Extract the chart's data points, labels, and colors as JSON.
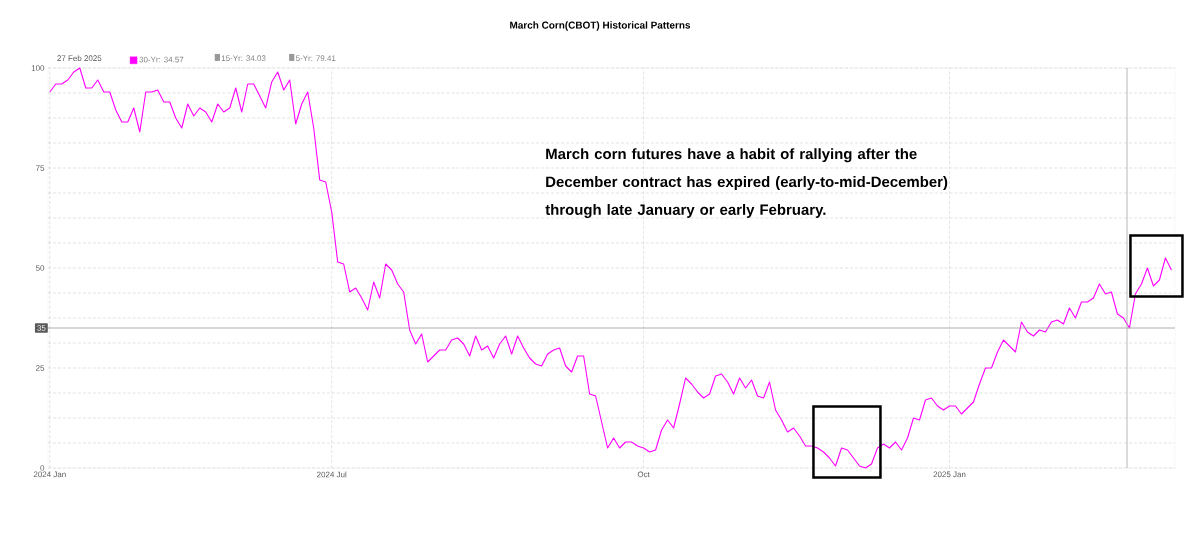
{
  "chart_data": {
    "type": "line",
    "title": "March Corn(CBOT) Historical Patterns",
    "categories": [
      "2024 Jan",
      null,
      null,
      null,
      null,
      null,
      null,
      null,
      null,
      null,
      null,
      null,
      null,
      null,
      null,
      null,
      null,
      null,
      null,
      null,
      null,
      null,
      null,
      null,
      null,
      null,
      null,
      null,
      null,
      null,
      null,
      null,
      null,
      null,
      null,
      null,
      null,
      null,
      null,
      null,
      null,
      null,
      null,
      null,
      null,
      null,
      null,
      "2024 Jul",
      null,
      null,
      null,
      null,
      null,
      null,
      null,
      null,
      null,
      null,
      null,
      null,
      null,
      null,
      null,
      null,
      null,
      null,
      null,
      null,
      null,
      null,
      null,
      null,
      null,
      null,
      null,
      null,
      null,
      null,
      null,
      null,
      null,
      null,
      null,
      null,
      null,
      null,
      null,
      null,
      null,
      null,
      null,
      null,
      null,
      null,
      null,
      null,
      null,
      null,
      null,
      "Oct",
      null,
      null,
      null,
      null,
      null,
      null,
      null,
      null,
      null,
      null,
      null,
      null,
      null,
      null,
      null,
      null,
      null,
      null,
      null,
      null,
      null,
      null,
      null,
      null,
      null,
      null,
      null,
      null,
      null,
      null,
      null,
      null,
      null,
      null,
      null,
      null,
      null,
      null,
      null,
      null,
      null,
      null,
      null,
      null,
      null,
      null,
      null,
      null,
      null,
      null,
      "2025 Jan",
      null,
      null,
      null,
      null,
      null,
      null,
      null,
      null,
      null,
      null,
      null,
      null,
      null,
      null,
      null,
      null,
      null,
      null,
      null,
      null,
      null,
      null,
      null,
      null,
      null,
      null,
      null,
      null,
      null,
      null,
      null,
      null,
      null,
      null,
      null,
      null,
      null
    ],
    "series": [
      {
        "name": "30-Yr: 34.57",
        "color": "#ff00ff",
        "values": [
          94,
          96,
          96,
          97,
          99,
          100,
          95,
          95,
          97,
          94,
          94,
          89.5,
          86.5,
          86.5,
          90,
          84,
          94,
          94,
          94.5,
          91.5,
          91.5,
          87.5,
          85,
          91,
          88,
          90,
          89,
          86.5,
          91,
          89,
          90,
          95,
          89,
          96,
          96,
          93,
          90,
          96.5,
          99,
          94.5,
          97,
          86,
          91,
          94,
          85,
          72,
          71.5,
          64,
          51.5,
          51,
          44,
          45,
          42.5,
          39.5,
          46.5,
          42.5,
          51,
          49.5,
          46,
          44,
          34.5,
          31,
          33.5,
          26.5,
          28,
          29.5,
          29.5,
          32,
          32.5,
          31,
          28,
          33,
          29.5,
          30.5,
          27.5,
          31,
          33,
          28.5,
          33,
          30,
          27.5,
          26,
          25.5,
          28.5,
          29.5,
          30,
          25.5,
          24,
          28,
          28,
          18.5,
          18,
          11.5,
          5,
          7.5,
          5,
          6.5,
          6.5,
          5.5,
          5,
          4,
          4.5,
          9.5,
          12,
          10,
          16,
          22.5,
          21,
          19,
          17.5,
          18.5,
          23,
          23.5,
          21.5,
          18.5,
          22.5,
          20,
          22,
          18,
          17.5,
          21.5,
          14.5,
          12,
          9,
          10,
          8,
          5.5,
          5.5,
          5,
          4,
          2.5,
          0.5,
          5,
          4.5,
          2.5,
          0.5,
          0,
          1,
          5,
          6,
          5,
          6.5,
          4.5,
          7.5,
          12.5,
          12,
          17,
          17.5,
          15.5,
          14.5,
          15.5,
          15.5,
          13.5,
          15,
          16.5,
          21,
          25,
          25,
          29,
          32,
          30.5,
          29,
          36.5,
          34,
          33,
          34.5,
          34,
          36.5,
          37,
          36,
          40,
          37.5,
          41.5,
          41.5,
          42.5,
          46,
          43.5,
          44,
          38.5,
          37.5,
          35,
          43.5,
          46,
          50,
          45.5,
          47,
          52.5,
          49.5
        ]
      }
    ],
    "ylim": [
      0,
      100
    ],
    "yticks": [
      0,
      {
        "value": 6.25,
        "label": null
      },
      {
        "value": 12.5,
        "label": null
      },
      {
        "value": 18.75,
        "label": null
      },
      25,
      {
        "value": 31.25,
        "label": null
      },
      {
        "value": 37.5,
        "label": null
      },
      {
        "value": 43.75,
        "label": null
      },
      50,
      {
        "value": 56.25,
        "label": null
      },
      {
        "value": 62.5,
        "label": null
      },
      {
        "value": 68.75,
        "label": null
      },
      75,
      {
        "value": 81.25,
        "label": null
      },
      {
        "value": 87.5,
        "label": null
      },
      {
        "value": 93.75,
        "label": null
      },
      100
    ],
    "grid": true,
    "legend": "top left",
    "ref_lines": [
      {
        "axis": "y",
        "value": 35,
        "label": "35",
        "color": "#999999"
      }
    ],
    "annotations": [
      "March corn futures have a habit of rallying after the December contract has expired (early-to-mid-December) through late January or early February.",
      "27 Feb 2025",
      "15-Yr: 34.03",
      "5-Yr: 79.41"
    ]
  }
}
